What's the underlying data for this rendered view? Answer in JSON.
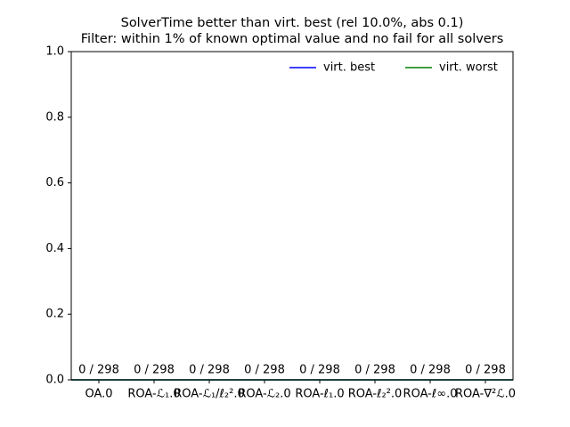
{
  "chart_data": {
    "type": "bar",
    "title": [
      "SolverTime better than virt. best (rel 10.0%, abs 0.1)",
      "Filter: within 1% of known optimal value and no fail for all solvers"
    ],
    "categories": [
      "OA.0",
      "ROA-ℒ₁.0",
      "ROA-ℒ₁/ℓ₂².0",
      "ROA-ℒ₂.0",
      "ROA-ℓ₁.0",
      "ROA-ℓ₂².0",
      "ROA-ℓ∞.0",
      "ROA-∇²ℒ.0"
    ],
    "values": [
      0,
      0,
      0,
      0,
      0,
      0,
      0,
      0
    ],
    "value_labels": [
      "0 / 298",
      "0 / 298",
      "0 / 298",
      "0 / 298",
      "0 / 298",
      "0 / 298",
      "0 / 298",
      "0 / 298"
    ],
    "color": "#1f77b4",
    "hlines": [
      {
        "name": "virt. best",
        "color": "blue",
        "value": 0
      },
      {
        "name": "virt. worst",
        "color": "green",
        "value": 0
      }
    ],
    "legend": "upper right",
    "ylim": [
      0,
      1
    ],
    "yticks": [
      {
        "value": 0,
        "label": "0.0"
      },
      {
        "value": 0.2,
        "label": "0.2"
      },
      {
        "value": 0.4,
        "label": "0.4"
      },
      {
        "value": 0.6,
        "label": "0.6"
      },
      {
        "value": 0.8,
        "label": "0.8"
      },
      {
        "value": 1,
        "label": "1.0"
      }
    ]
  }
}
